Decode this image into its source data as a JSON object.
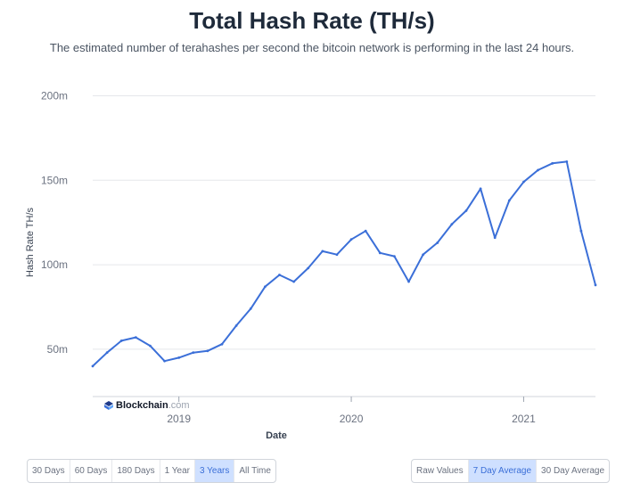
{
  "header": {
    "title": "Total Hash Rate (TH/s)",
    "subtitle": "The estimated number of terahashes per second the bitcoin network is performing in the last 24 hours."
  },
  "watermark": {
    "brand": "Blockchain",
    "domain": ".com"
  },
  "timespan_buttons": [
    {
      "label": "30 Days",
      "active": false
    },
    {
      "label": "60 Days",
      "active": false
    },
    {
      "label": "180 Days",
      "active": false
    },
    {
      "label": "1 Year",
      "active": false
    },
    {
      "label": "3 Years",
      "active": true
    },
    {
      "label": "All Time",
      "active": false
    }
  ],
  "average_buttons": [
    {
      "label": "Raw Values",
      "active": false
    },
    {
      "label": "7 Day Average",
      "active": true
    },
    {
      "label": "30 Day Average",
      "active": false
    }
  ],
  "chart_data": {
    "type": "line",
    "xlabel": "Date",
    "ylabel": "Hash Rate TH/s",
    "x_ticks": [
      "2019",
      "2020",
      "2021"
    ],
    "y_ticks": [
      {
        "value": 50,
        "label": "50m"
      },
      {
        "value": 100,
        "label": "100m"
      },
      {
        "value": 150,
        "label": "150m"
      },
      {
        "value": 200,
        "label": "200m"
      }
    ],
    "ylim": [
      22,
      205
    ],
    "y_unit": "million TH/s",
    "grid": true,
    "line_color": "#3b6fd8",
    "series": [
      {
        "x": [
          "2018-07",
          "2018-08",
          "2018-09",
          "2018-10",
          "2018-11",
          "2018-12",
          "2019-01",
          "2019-02",
          "2019-03",
          "2019-04",
          "2019-05",
          "2019-06",
          "2019-07",
          "2019-08",
          "2019-09",
          "2019-10",
          "2019-11",
          "2019-12",
          "2020-01",
          "2020-02",
          "2020-03",
          "2020-04",
          "2020-05",
          "2020-06",
          "2020-07",
          "2020-08",
          "2020-09",
          "2020-10",
          "2020-11",
          "2020-12",
          "2021-01",
          "2021-02",
          "2021-03",
          "2021-04",
          "2021-05",
          "2021-06"
        ],
        "values": [
          40,
          48,
          55,
          57,
          52,
          43,
          45,
          48,
          49,
          53,
          64,
          74,
          87,
          94,
          90,
          98,
          108,
          106,
          115,
          120,
          107,
          105,
          90,
          106,
          113,
          124,
          132,
          145,
          116,
          138,
          149,
          156,
          160,
          161,
          120,
          88
        ]
      }
    ]
  }
}
